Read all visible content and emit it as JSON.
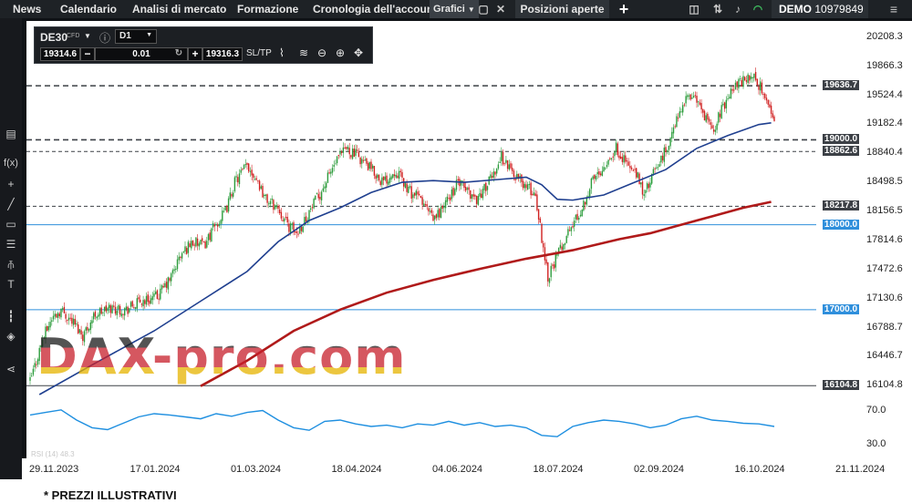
{
  "topbar": {
    "tabs": [
      "News",
      "Calendario",
      "Analisi di mercato",
      "Formazione",
      "Cronologia dell'account",
      "Grafici",
      "Posizioni aperte"
    ],
    "add_icon": "plus-icon",
    "account_label": "DEMO",
    "account_number": "10979849"
  },
  "toolbar": {
    "symbol": "DE30",
    "symbol_tag": "CFD",
    "timeframe": "D1",
    "bid": "19314.6",
    "volume": "0.01",
    "ask": "19316.3",
    "sltp_label": "SL/TP"
  },
  "watermark": "DAX-pro.com",
  "footer_note": "* PREZZI ILLUSTRATIVI",
  "rsi_label": "RSI (14) 48.3",
  "chart_data": {
    "type": "candlestick",
    "symbol": "DE30",
    "timeframe": "D1",
    "y_ticks": [
      "20208.3",
      "19866.3",
      "19524.4",
      "19182.4",
      "18840.4",
      "18498.5",
      "18156.5",
      "17814.6",
      "17472.6",
      "17130.6",
      "16788.7",
      "16446.7",
      "16104.8"
    ],
    "x_ticks": [
      "29.11.2023",
      "17.01.2024",
      "01.03.2024",
      "18.04.2024",
      "04.06.2024",
      "18.07.2024",
      "02.09.2024",
      "16.10.2024",
      "21.11.2024"
    ],
    "price_levels": [
      {
        "value": "19636.7",
        "style": "dashed",
        "color": "#3c4046"
      },
      {
        "value": "19000.0",
        "style": "dashed",
        "color": "#3c4046"
      },
      {
        "value": "18862.6",
        "style": "dashed",
        "color": "#3c4046"
      },
      {
        "value": "18217.8",
        "style": "dashed",
        "color": "#3c4046"
      },
      {
        "value": "18000.0",
        "style": "solid",
        "color": "#2f8fdc"
      },
      {
        "value": "17000.0",
        "style": "solid",
        "color": "#2f8fdc"
      },
      {
        "value": "16104.8",
        "style": "solid",
        "color": "#3c4046"
      }
    ],
    "ma_fast_color": "#1f3f8f",
    "ma_slow_color": "#b01a1a",
    "rsi_ticks": [
      "70.0",
      "30.0"
    ],
    "rsi_color": "#1e8fe0",
    "close_path": [
      [
        0,
        16150
      ],
      [
        8,
        16650
      ],
      [
        14,
        16900
      ],
      [
        20,
        17000
      ],
      [
        28,
        16850
      ],
      [
        34,
        16700
      ],
      [
        42,
        16950
      ],
      [
        52,
        17020
      ],
      [
        62,
        17000
      ],
      [
        72,
        17100
      ],
      [
        82,
        17150
      ],
      [
        90,
        17350
      ],
      [
        96,
        17600
      ],
      [
        104,
        17800
      ],
      [
        112,
        17750
      ],
      [
        118,
        17950
      ],
      [
        126,
        18150
      ],
      [
        132,
        18500
      ],
      [
        140,
        18700
      ],
      [
        146,
        18550
      ],
      [
        152,
        18300
      ],
      [
        160,
        18200
      ],
      [
        166,
        18000
      ],
      [
        172,
        17900
      ],
      [
        180,
        18150
      ],
      [
        188,
        18400
      ],
      [
        196,
        18700
      ],
      [
        204,
        18900
      ],
      [
        212,
        18800
      ],
      [
        220,
        18650
      ],
      [
        228,
        18500
      ],
      [
        236,
        18650
      ],
      [
        244,
        18400
      ],
      [
        252,
        18300
      ],
      [
        260,
        18050
      ],
      [
        268,
        18250
      ],
      [
        276,
        18500
      ],
      [
        282,
        18400
      ],
      [
        288,
        18300
      ],
      [
        296,
        18500
      ],
      [
        304,
        18800
      ],
      [
        312,
        18600
      ],
      [
        320,
        18450
      ],
      [
        326,
        18350
      ],
      [
        330,
        17850
      ],
      [
        334,
        17400
      ],
      [
        338,
        17550
      ],
      [
        344,
        17800
      ],
      [
        350,
        18000
      ],
      [
        356,
        18200
      ],
      [
        362,
        18500
      ],
      [
        370,
        18700
      ],
      [
        378,
        18900
      ],
      [
        386,
        18700
      ],
      [
        392,
        18550
      ],
      [
        396,
        18350
      ],
      [
        402,
        18600
      ],
      [
        408,
        18800
      ],
      [
        414,
        19050
      ],
      [
        420,
        19400
      ],
      [
        428,
        19550
      ],
      [
        434,
        19300
      ],
      [
        440,
        19100
      ],
      [
        446,
        19350
      ],
      [
        452,
        19600
      ],
      [
        460,
        19700
      ],
      [
        466,
        19750
      ],
      [
        472,
        19600
      ],
      [
        476,
        19400
      ],
      [
        480,
        19250
      ]
    ],
    "ma_fast_path": [
      [
        6,
        16000
      ],
      [
        40,
        16350
      ],
      [
        80,
        16750
      ],
      [
        110,
        17100
      ],
      [
        140,
        17450
      ],
      [
        160,
        17800
      ],
      [
        180,
        18050
      ],
      [
        200,
        18200
      ],
      [
        220,
        18380
      ],
      [
        240,
        18500
      ],
      [
        260,
        18520
      ],
      [
        280,
        18500
      ],
      [
        300,
        18530
      ],
      [
        320,
        18560
      ],
      [
        330,
        18470
      ],
      [
        340,
        18300
      ],
      [
        350,
        18290
      ],
      [
        370,
        18350
      ],
      [
        390,
        18500
      ],
      [
        410,
        18650
      ],
      [
        430,
        18900
      ],
      [
        450,
        19050
      ],
      [
        470,
        19180
      ],
      [
        478,
        19200
      ]
    ],
    "ma_slow_path": [
      [
        110,
        16100
      ],
      [
        140,
        16400
      ],
      [
        170,
        16750
      ],
      [
        200,
        17000
      ],
      [
        230,
        17200
      ],
      [
        260,
        17350
      ],
      [
        290,
        17480
      ],
      [
        320,
        17600
      ],
      [
        350,
        17700
      ],
      [
        380,
        17830
      ],
      [
        400,
        17900
      ],
      [
        420,
        18000
      ],
      [
        440,
        18100
      ],
      [
        460,
        18200
      ],
      [
        478,
        18270
      ]
    ],
    "rsi_path": [
      [
        0,
        68
      ],
      [
        10,
        72
      ],
      [
        20,
        76
      ],
      [
        30,
        60
      ],
      [
        40,
        48
      ],
      [
        50,
        45
      ],
      [
        60,
        55
      ],
      [
        70,
        65
      ],
      [
        80,
        70
      ],
      [
        90,
        68
      ],
      [
        100,
        65
      ],
      [
        110,
        62
      ],
      [
        120,
        70
      ],
      [
        130,
        66
      ],
      [
        140,
        72
      ],
      [
        150,
        75
      ],
      [
        160,
        60
      ],
      [
        170,
        48
      ],
      [
        180,
        44
      ],
      [
        190,
        58
      ],
      [
        200,
        60
      ],
      [
        210,
        54
      ],
      [
        220,
        50
      ],
      [
        230,
        52
      ],
      [
        240,
        48
      ],
      [
        250,
        54
      ],
      [
        260,
        52
      ],
      [
        270,
        58
      ],
      [
        280,
        52
      ],
      [
        290,
        56
      ],
      [
        300,
        50
      ],
      [
        310,
        52
      ],
      [
        320,
        48
      ],
      [
        330,
        36
      ],
      [
        340,
        34
      ],
      [
        350,
        50
      ],
      [
        360,
        56
      ],
      [
        370,
        60
      ],
      [
        380,
        58
      ],
      [
        390,
        54
      ],
      [
        400,
        48
      ],
      [
        410,
        52
      ],
      [
        420,
        62
      ],
      [
        430,
        66
      ],
      [
        440,
        60
      ],
      [
        450,
        58
      ],
      [
        460,
        55
      ],
      [
        470,
        54
      ],
      [
        480,
        50
      ]
    ]
  }
}
